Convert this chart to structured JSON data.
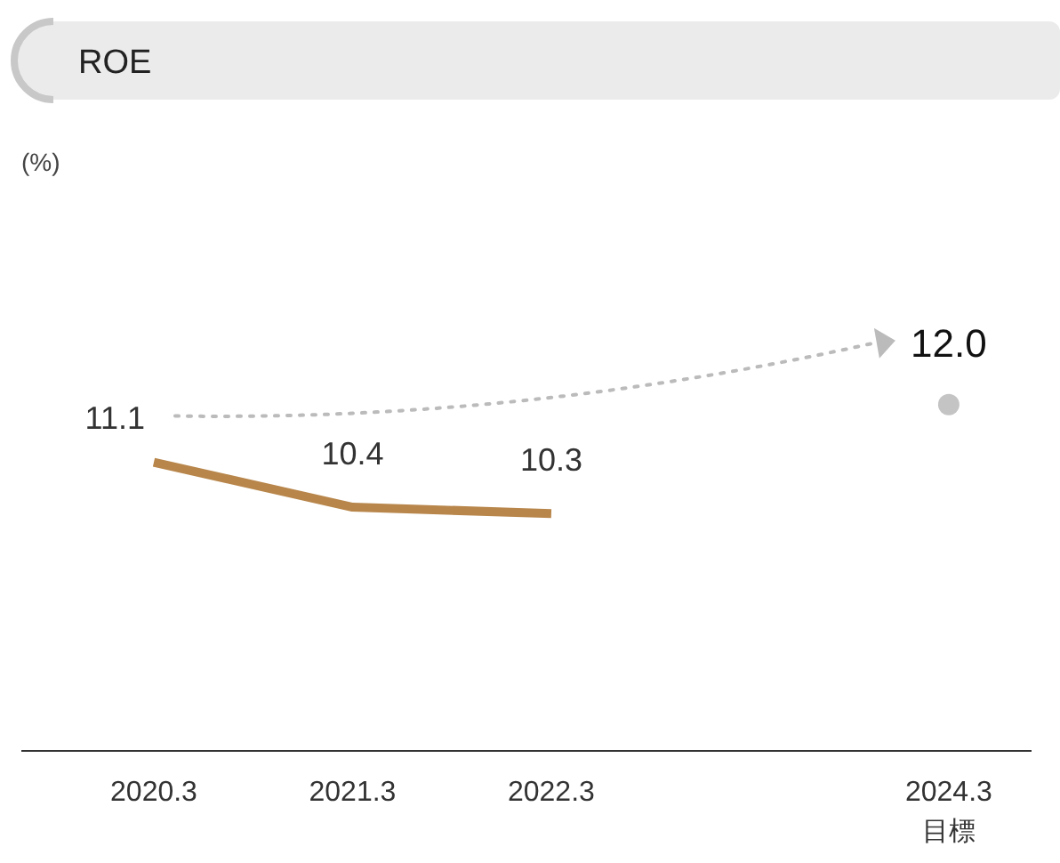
{
  "chart_data": {
    "type": "line",
    "title": "ROE",
    "annotations": [
      "(%)"
    ],
    "xlim": [
      "2019-07",
      "2024-08"
    ],
    "xticks": [
      {
        "value": "2020-03",
        "label": "2020.3"
      },
      {
        "value": "2021-03",
        "label": "2021.3"
      },
      {
        "value": "2022-03",
        "label": "2022.3"
      },
      {
        "value": "2024-03",
        "label": "2024.3\n目標"
      }
    ],
    "series": [
      {
        "color": "#b8864b",
        "x": [
          "2020-03",
          "2021-03",
          "2022-03"
        ],
        "values": [
          11.1,
          10.4,
          10.3
        ],
        "value_labels": [
          "11.1",
          "10.4",
          "10.3"
        ]
      },
      {
        "type": "scatter",
        "color": "#c4c4c4",
        "x": [
          "2024-03"
        ],
        "values": [
          12.0
        ],
        "value_labels": [
          "12.0"
        ]
      }
    ]
  }
}
